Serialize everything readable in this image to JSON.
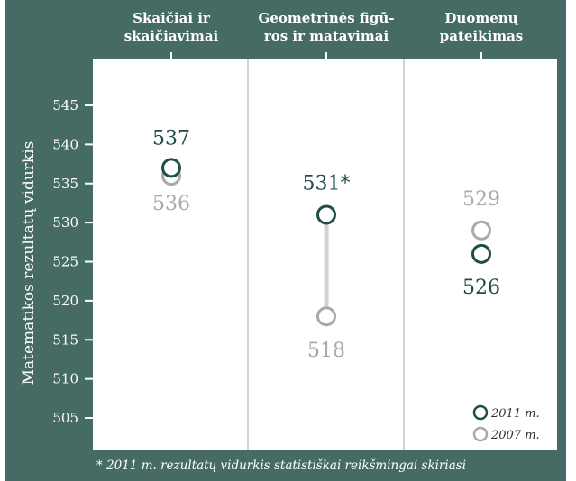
{
  "colors": {
    "panel": "#466b64",
    "series_2011": "#1f4d47",
    "series_2007": "#a9a9a9",
    "divider": "#d3d3d3",
    "header_text": "#ffffff"
  },
  "chart_data": {
    "type": "scatter",
    "categories": [
      [
        "Skaičiai ir",
        "skaičiavimai"
      ],
      [
        "Geometrinės figū-",
        "ros ir matavimai"
      ],
      [
        "Duomenų",
        "pateikimas"
      ]
    ],
    "ylabel": "Matematikos rezultatų vidurkis",
    "ylim": [
      500,
      550
    ],
    "yticks": [
      505,
      510,
      515,
      520,
      525,
      530,
      535,
      540,
      545
    ],
    "series": [
      {
        "name": "2011 m.",
        "values": [
          537,
          531,
          526
        ],
        "labels": [
          "537",
          "531*",
          "526"
        ]
      },
      {
        "name": "2007 m.",
        "values": [
          536,
          518,
          529
        ],
        "labels": [
          "536",
          "518",
          "529"
        ]
      }
    ],
    "legend": "bottom-right",
    "footnote": "* 2011 m. rezultatų vidurkis statistiškai reikšmingai skiriasi"
  }
}
